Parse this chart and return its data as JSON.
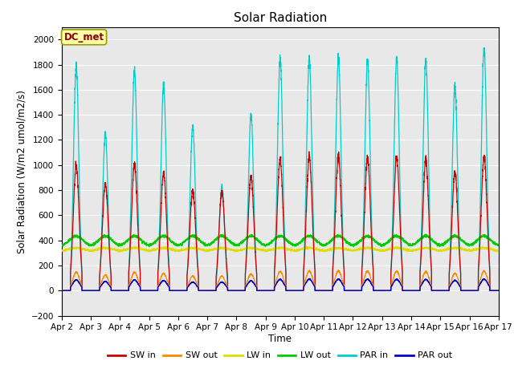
{
  "title": "Solar Radiation",
  "ylabel": "Solar Radiation (W/m2 umol/m2/s)",
  "xlabel": "Time",
  "ylim": [
    -200,
    2100
  ],
  "yticks": [
    -200,
    0,
    200,
    400,
    600,
    800,
    1000,
    1200,
    1400,
    1600,
    1800,
    2000
  ],
  "x_labels": [
    "Apr 2",
    "Apr 3",
    "Apr 4",
    "Apr 5",
    "Apr 6",
    "Apr 7",
    "Apr 8",
    "Apr 9",
    "Apr 10",
    "Apr 11",
    "Apr 12",
    "Apr 13",
    "Apr 14",
    "Apr 15",
    "Apr 16",
    "Apr 17"
  ],
  "n_days": 15,
  "bg_color": "#e8e8e8",
  "annotation_text": "DC_met",
  "annotation_color": "#880000",
  "annotation_bg": "#ffffaa",
  "annotation_edge": "#999900",
  "series_colors": {
    "SW_in": "#cc0000",
    "SW_out": "#ff8800",
    "LW_in": "#dddd00",
    "LW_out": "#00cc00",
    "PAR_in": "#00cccc",
    "PAR_out": "#0000cc"
  },
  "legend_labels": [
    "SW in",
    "SW out",
    "LW in",
    "LW out",
    "PAR in",
    "PAR out"
  ],
  "legend_colors": [
    "#cc0000",
    "#ff8800",
    "#dddd00",
    "#00cc00",
    "#00cccc",
    "#0000cc"
  ],
  "SW_in_peaks": [
    1000,
    850,
    1010,
    940,
    800,
    790,
    910,
    1050,
    1070,
    1070,
    1060,
    1060,
    1040,
    950,
    1070
  ],
  "PAR_in_peaks": [
    1790,
    1250,
    1760,
    1650,
    1310,
    830,
    1400,
    1850,
    1850,
    1850,
    1840,
    1850,
    1840,
    1630,
    1940
  ]
}
